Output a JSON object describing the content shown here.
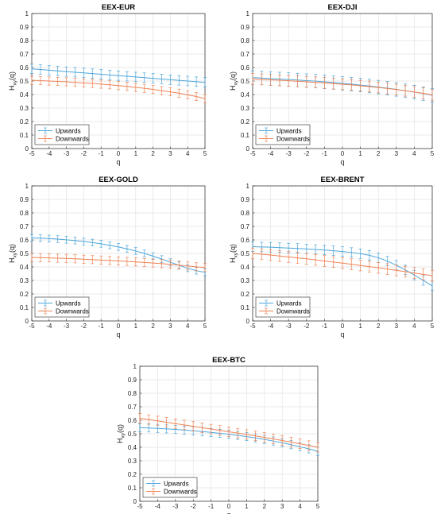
{
  "colors": {
    "upwards": "#4DA6DA",
    "downwards": "#EE8355",
    "grid": "#E3E3E3",
    "axis": "#262626"
  },
  "chart_data": [
    {
      "type": "line",
      "title": "EEX-EUR",
      "xlabel": "q",
      "ylabel": "H",
      "ylabel_sub": "xy",
      "ylabel_tail": "(q)",
      "x": [
        -5,
        -4.5,
        -4,
        -3.5,
        -3,
        -2.5,
        -2,
        -1.5,
        -1,
        -0.5,
        0,
        0.5,
        1,
        1.5,
        2,
        2.5,
        3,
        3.5,
        4,
        4.5,
        5
      ],
      "xticks": [
        "-5",
        "-4",
        "-3",
        "-2",
        "-1",
        "0",
        "1",
        "2",
        "3",
        "4",
        "5"
      ],
      "yticks": [
        "0",
        "0.1",
        "0.2",
        "0.3",
        "0.4",
        "0.5",
        "0.6",
        "0.7",
        "0.8",
        "0.9",
        "1"
      ],
      "xlim": [
        -5,
        5
      ],
      "ylim": [
        0,
        1
      ],
      "grid": true,
      "legend_position": "bottom-left",
      "series": [
        {
          "name": "Upwards",
          "values": [
            0.59,
            0.585,
            0.58,
            0.575,
            0.57,
            0.565,
            0.56,
            0.555,
            0.55,
            0.545,
            0.54,
            0.535,
            0.53,
            0.525,
            0.52,
            0.515,
            0.51,
            0.505,
            0.5,
            0.495,
            0.49
          ],
          "err": 0.035
        },
        {
          "name": "Downwards",
          "values": [
            0.505,
            0.503,
            0.5,
            0.497,
            0.494,
            0.49,
            0.486,
            0.482,
            0.477,
            0.472,
            0.466,
            0.46,
            0.453,
            0.446,
            0.438,
            0.429,
            0.42,
            0.41,
            0.398,
            0.385,
            0.37
          ],
          "err": 0.03
        }
      ]
    },
    {
      "type": "line",
      "title": "EEX-DJI",
      "xlabel": "q",
      "ylabel": "H",
      "ylabel_sub": "xy",
      "ylabel_tail": "(q)",
      "x": [
        -5,
        -4.5,
        -4,
        -3.5,
        -3,
        -2.5,
        -2,
        -1.5,
        -1,
        -0.5,
        0,
        0.5,
        1,
        1.5,
        2,
        2.5,
        3,
        3.5,
        4,
        4.5,
        5
      ],
      "xticks": [
        "-5",
        "-4",
        "-3",
        "-2",
        "-1",
        "0",
        "1",
        "2",
        "3",
        "4",
        "5"
      ],
      "yticks": [
        "0",
        "0.1",
        "0.2",
        "0.3",
        "0.4",
        "0.5",
        "0.6",
        "0.7",
        "0.8",
        "0.9",
        "1"
      ],
      "xlim": [
        -5,
        5
      ],
      "ylim": [
        0,
        1
      ],
      "grid": true,
      "legend_position": "bottom-left",
      "series": [
        {
          "name": "Upwards",
          "values": [
            0.525,
            0.522,
            0.518,
            0.515,
            0.511,
            0.507,
            0.503,
            0.499,
            0.494,
            0.489,
            0.483,
            0.477,
            0.47,
            0.463,
            0.455,
            0.447,
            0.438,
            0.428,
            0.418,
            0.407,
            0.395
          ],
          "err": 0.05
        },
        {
          "name": "Downwards",
          "values": [
            0.515,
            0.512,
            0.509,
            0.506,
            0.502,
            0.498,
            0.494,
            0.49,
            0.486,
            0.481,
            0.476,
            0.471,
            0.465,
            0.459,
            0.452,
            0.445,
            0.437,
            0.428,
            0.419,
            0.409,
            0.398
          ],
          "err": 0.04
        }
      ]
    },
    {
      "type": "line",
      "title": "EEX-GOLD",
      "xlabel": "q",
      "ylabel": "H",
      "ylabel_sub": "xy",
      "ylabel_tail": "(q)",
      "x": [
        -5,
        -4.5,
        -4,
        -3.5,
        -3,
        -2.5,
        -2,
        -1.5,
        -1,
        -0.5,
        0,
        0.5,
        1,
        1.5,
        2,
        2.5,
        3,
        3.5,
        4,
        4.5,
        5
      ],
      "xticks": [
        "-5",
        "-4",
        "-3",
        "-2",
        "-1",
        "0",
        "1",
        "2",
        "3",
        "4",
        "5"
      ],
      "yticks": [
        "0",
        "0.1",
        "0.2",
        "0.3",
        "0.4",
        "0.5",
        "0.6",
        "0.7",
        "0.8",
        "0.9",
        "1"
      ],
      "xlim": [
        -5,
        5
      ],
      "ylim": [
        0,
        1
      ],
      "grid": true,
      "legend_position": "bottom-left",
      "series": [
        {
          "name": "Upwards",
          "values": [
            0.615,
            0.613,
            0.61,
            0.606,
            0.601,
            0.595,
            0.588,
            0.58,
            0.571,
            0.56,
            0.548,
            0.534,
            0.518,
            0.5,
            0.48,
            0.458,
            0.435,
            0.412,
            0.39,
            0.372,
            0.36
          ],
          "err": 0.025
        },
        {
          "name": "Downwards",
          "values": [
            0.47,
            0.469,
            0.467,
            0.465,
            0.463,
            0.46,
            0.457,
            0.454,
            0.451,
            0.448,
            0.445,
            0.441,
            0.437,
            0.433,
            0.429,
            0.424,
            0.419,
            0.413,
            0.407,
            0.401,
            0.395
          ],
          "err": 0.03
        }
      ]
    },
    {
      "type": "line",
      "title": "EEX-BRENT",
      "xlabel": "q",
      "ylabel": "H",
      "ylabel_sub": "xy",
      "ylabel_tail": "(q)",
      "x": [
        -5,
        -4.5,
        -4,
        -3.5,
        -3,
        -2.5,
        -2,
        -1.5,
        -1,
        -0.5,
        0,
        0.5,
        1,
        1.5,
        2,
        2.5,
        3,
        3.5,
        4,
        4.5,
        5
      ],
      "xticks": [
        "-5",
        "-4",
        "-3",
        "-2",
        "-1",
        "0",
        "1",
        "2",
        "3",
        "4",
        "5"
      ],
      "yticks": [
        "0",
        "0.1",
        "0.2",
        "0.3",
        "0.4",
        "0.5",
        "0.6",
        "0.7",
        "0.8",
        "0.9",
        "1"
      ],
      "xlim": [
        -5,
        5
      ],
      "ylim": [
        0,
        1
      ],
      "grid": true,
      "legend_position": "bottom-left",
      "series": [
        {
          "name": "Upwards",
          "values": [
            0.55,
            0.548,
            0.546,
            0.543,
            0.54,
            0.537,
            0.533,
            0.529,
            0.525,
            0.52,
            0.514,
            0.507,
            0.498,
            0.486,
            0.468,
            0.443,
            0.413,
            0.378,
            0.34,
            0.3,
            0.26
          ],
          "err": 0.035
        },
        {
          "name": "Downwards",
          "values": [
            0.5,
            0.494,
            0.488,
            0.481,
            0.474,
            0.467,
            0.46,
            0.452,
            0.444,
            0.436,
            0.428,
            0.42,
            0.411,
            0.402,
            0.393,
            0.384,
            0.375,
            0.365,
            0.355,
            0.345,
            0.335
          ],
          "err": 0.04
        }
      ]
    },
    {
      "type": "line",
      "title": "EEX-BTC",
      "xlabel": "q",
      "ylabel": "H",
      "ylabel_sub": "xy",
      "ylabel_tail": "(q)",
      "x": [
        -5,
        -4.5,
        -4,
        -3.5,
        -3,
        -2.5,
        -2,
        -1.5,
        -1,
        -0.5,
        0,
        0.5,
        1,
        1.5,
        2,
        2.5,
        3,
        3.5,
        4,
        4.5,
        5
      ],
      "xticks": [
        "-5",
        "-4",
        "-3",
        "-2",
        "-1",
        "0",
        "1",
        "2",
        "3",
        "4",
        "5"
      ],
      "yticks": [
        "0",
        "0.1",
        "0.2",
        "0.3",
        "0.4",
        "0.5",
        "0.6",
        "0.7",
        "0.8",
        "0.9",
        "1"
      ],
      "xlim": [
        -5,
        5
      ],
      "ylim": [
        0,
        1
      ],
      "grid": true,
      "legend_position": "bottom-left",
      "series": [
        {
          "name": "Upwards",
          "values": [
            0.545,
            0.543,
            0.54,
            0.536,
            0.532,
            0.527,
            0.522,
            0.516,
            0.51,
            0.503,
            0.496,
            0.488,
            0.479,
            0.469,
            0.458,
            0.446,
            0.433,
            0.419,
            0.404,
            0.388,
            0.37
          ],
          "err": 0.03
        },
        {
          "name": "Downwards",
          "values": [
            0.615,
            0.605,
            0.595,
            0.585,
            0.575,
            0.565,
            0.555,
            0.545,
            0.535,
            0.525,
            0.515,
            0.505,
            0.495,
            0.484,
            0.473,
            0.462,
            0.45,
            0.438,
            0.426,
            0.413,
            0.4
          ],
          "err": 0.035
        }
      ]
    }
  ]
}
